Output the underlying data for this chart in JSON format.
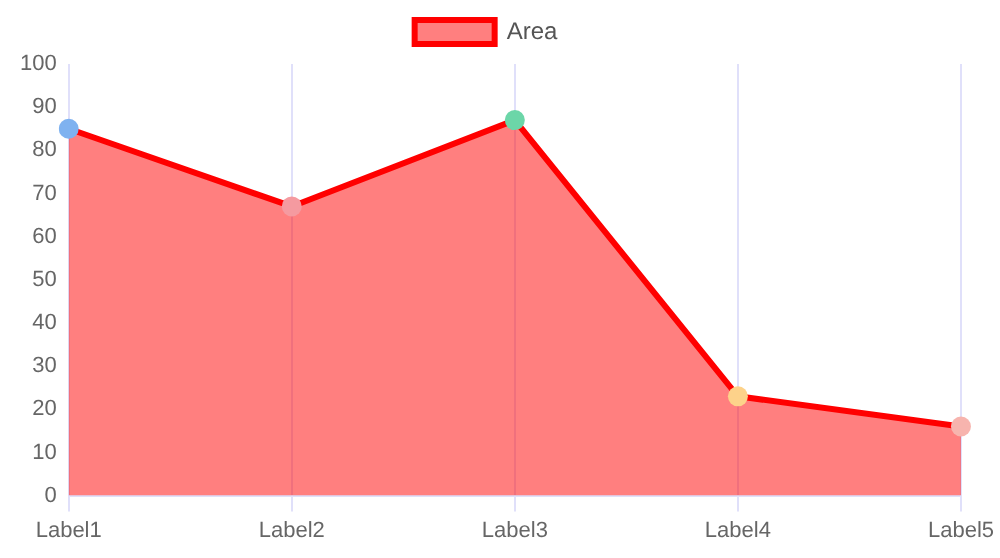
{
  "chart_data": {
    "type": "area",
    "categories": [
      "Label1",
      "Label2",
      "Label3",
      "Label4",
      "Label5"
    ],
    "series": [
      {
        "name": "Area",
        "color": "#ff0000",
        "colors": [
          "#7fb2f0",
          "#f59aa0",
          "#6cd6a8",
          "#fdd28a",
          "#f7b4ae"
        ],
        "values": [
          85,
          67,
          87,
          23,
          16
        ]
      }
    ],
    "ylim": [
      0,
      100
    ],
    "yticks": [
      0,
      10,
      20,
      30,
      40,
      50,
      60,
      70,
      80,
      90,
      100
    ],
    "grid": "x",
    "legend": "top",
    "marker": "circle"
  }
}
